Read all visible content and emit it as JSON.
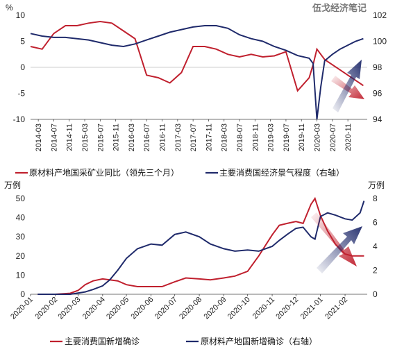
{
  "watermark": "伍戈经济笔记",
  "colors": {
    "red": "#C0202E",
    "navy": "#1F2A6B"
  },
  "chart_data": [
    {
      "type": "line",
      "y_unit_left": "%",
      "left_ylim": [
        -10,
        10
      ],
      "left_yticks": [
        "10",
        "5",
        "0",
        "-5",
        "-10"
      ],
      "right_ylim": [
        94,
        102
      ],
      "right_yticks": [
        "102",
        "100",
        "98",
        "96",
        "94"
      ],
      "xtick_labels": [
        "2014-03",
        "2014-07",
        "2014-11",
        "2015-03",
        "2015-07",
        "2015-11",
        "2016-03",
        "2016-07",
        "2016-11",
        "2017-03",
        "2017-07",
        "2017-11",
        "2018-03",
        "2018-07",
        "2018-11",
        "2019-03",
        "2019-07",
        "2019-11",
        "2020-03",
        "2020-07",
        "2020-11"
      ],
      "x_months": [
        "2014-01",
        "2014-04",
        "2014-07",
        "2014-10",
        "2015-01",
        "2015-04",
        "2015-07",
        "2015-10",
        "2016-01",
        "2016-04",
        "2016-07",
        "2016-10",
        "2017-01",
        "2017-04",
        "2017-07",
        "2017-10",
        "2018-01",
        "2018-04",
        "2018-07",
        "2018-10",
        "2019-01",
        "2019-04",
        "2019-07",
        "2019-10",
        "2020-01",
        "2020-02",
        "2020-03",
        "2020-04",
        "2020-05",
        "2020-07",
        "2020-09",
        "2020-11",
        "2021-01",
        "2021-03"
      ],
      "series": [
        {
          "name": "原材料产地国采矿业同比（领先三个月）",
          "axis": "left",
          "color": "#C0202E",
          "values": [
            4.0,
            3.5,
            6.5,
            8.0,
            8.0,
            8.5,
            8.8,
            8.5,
            7.0,
            5.5,
            -1.5,
            -2.0,
            -3.0,
            -1.0,
            4.0,
            4.0,
            3.5,
            2.5,
            2.0,
            2.5,
            2.0,
            2.2,
            3.0,
            -4.5,
            -2.0,
            0.5,
            3.5,
            2.5,
            1.5,
            0.5,
            -0.5,
            -1.5,
            -2.5,
            -3.5
          ]
        },
        {
          "name": "主要消费国经济景气程度（右轴）",
          "axis": "right",
          "color": "#1F2A6B",
          "values": [
            100.6,
            100.4,
            100.3,
            100.3,
            100.2,
            100.1,
            99.9,
            99.7,
            99.6,
            99.8,
            100.1,
            100.4,
            100.7,
            100.9,
            101.1,
            101.2,
            101.2,
            101.0,
            100.5,
            100.2,
            100.0,
            99.6,
            99.3,
            98.9,
            98.7,
            98.3,
            94.0,
            96.5,
            98.5,
            99.0,
            99.4,
            99.7,
            100.0,
            100.2
          ]
        }
      ]
    },
    {
      "type": "line",
      "y_unit_left": "万例",
      "y_unit_right": "万例",
      "left_ylim": [
        0,
        50
      ],
      "left_yticks": [
        "50",
        "40",
        "30",
        "20",
        "10",
        "0"
      ],
      "right_ylim": [
        0,
        8
      ],
      "right_yticks": [
        "8",
        "6",
        "4",
        "2",
        "0"
      ],
      "xtick_labels": [
        "2020-01",
        "2020-02",
        "2020-03",
        "2020-04",
        "2020-05",
        "2020-06",
        "2020-07",
        "2020-08",
        "2020-09",
        "2020-10",
        "2020-11",
        "2020-12",
        "2021-01",
        "2021-02"
      ],
      "x_dates": [
        "2020-01-10",
        "2020-02-01",
        "2020-02-20",
        "2020-03-01",
        "2020-03-10",
        "2020-03-20",
        "2020-04-01",
        "2020-04-10",
        "2020-04-20",
        "2020-05-01",
        "2020-05-15",
        "2020-06-01",
        "2020-06-15",
        "2020-07-01",
        "2020-07-15",
        "2020-08-01",
        "2020-08-15",
        "2020-09-01",
        "2020-09-15",
        "2020-10-01",
        "2020-10-15",
        "2020-11-01",
        "2020-11-10",
        "2020-11-20",
        "2020-12-01",
        "2020-12-10",
        "2020-12-20",
        "2020-12-25",
        "2021-01-01",
        "2021-01-10",
        "2021-01-20",
        "2021-02-01",
        "2021-02-10",
        "2021-02-20",
        "2021-02-25"
      ],
      "series": [
        {
          "name": "主要消费国新增确诊",
          "axis": "left",
          "color": "#C0202E",
          "values": [
            0,
            0,
            0.5,
            2,
            5,
            7,
            8,
            7.5,
            7,
            5,
            4,
            4,
            4,
            6.5,
            8.5,
            8,
            7.5,
            8.5,
            9.5,
            12,
            20,
            31,
            36,
            37,
            38,
            37,
            47,
            50,
            41,
            33,
            26,
            21,
            20,
            20,
            20
          ]
        },
        {
          "name": "原材料产地国新增确诊（右轴）",
          "axis": "right",
          "color": "#1F2A6B",
          "values": [
            0,
            0,
            0,
            0.1,
            0.2,
            0.4,
            0.7,
            1.2,
            2.0,
            3.0,
            3.8,
            4.2,
            4.1,
            5.0,
            5.2,
            4.8,
            4.2,
            3.8,
            3.6,
            3.7,
            3.6,
            4.0,
            4.5,
            5.0,
            5.5,
            5.6,
            4.8,
            4.6,
            6.5,
            6.8,
            6.6,
            6.3,
            6.2,
            6.8,
            7.8
          ]
        }
      ]
    }
  ]
}
